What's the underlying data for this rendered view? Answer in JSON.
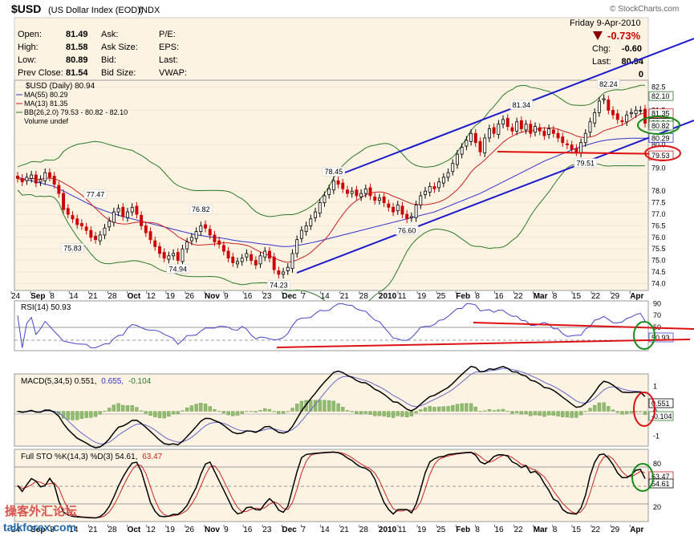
{
  "header": {
    "symbol": "$USD",
    "name": "(US Dollar Index (EOD))",
    "exchange": "INDX",
    "copyright": "© StockCharts.com",
    "date": "Friday  9-Apr-2010",
    "pct_change": "-0.73%"
  },
  "quote": {
    "open_label": "Open:",
    "open": "81.49",
    "high_label": "High:",
    "high": "81.58",
    "low_label": "Low:",
    "low": "80.89",
    "prev_label": "Prev Close:",
    "prev": "81.54",
    "ask_label": "Ask:",
    "asksize_label": "Ask Size:",
    "bid_label": "Bid:",
    "bidsize_label": "Bid Size:",
    "pe_label": "P/E:",
    "eps_label": "EPS:",
    "last_label": "Last:",
    "vwap_label": "VWAP:",
    "chg_label": "Chg:",
    "chg": "-0.60",
    "last2_label": "Last:",
    "last": "80.94",
    "vol": "0"
  },
  "legend": {
    "price": "$USD (Daily) 80.94",
    "ma55": "MA(55) 80.29",
    "ma13": "MA(13) 81.35",
    "bb": "BB(26,2.0) 79.53 - 80.82 - 82.10",
    "volume": "Volume undef"
  },
  "panels": {
    "rsi": "RSI(14) 50.93",
    "macd_main": "MACD(5,34,5) 0.551,",
    "macd_signal": "0.655,",
    "macd_hist": "-0.104",
    "sto_main": "Full STO %K(14,3) %D(3) 54.61,",
    "sto_d": "63.47"
  },
  "watermark": {
    "cn": "操客外汇论坛",
    "site": "talkforex.com"
  },
  "colors": {
    "panel_bg": "#fdf3e3",
    "up": "#000000",
    "down": "#cc0000",
    "ma55": "#3333cc",
    "ma13": "#cc2222",
    "bb": "#2a7a2a",
    "trend": "#1a1acc",
    "support": "#dd1111",
    "circle_green": "#1a8a1a",
    "circle_red": "#dd1111"
  },
  "chart_data": [
    {
      "type": "candlestick",
      "title": "$USD (US Dollar Index (EOD))",
      "x_ticks": [
        "24",
        "Sep",
        "8",
        "14",
        "21",
        "28",
        "Oct",
        "12",
        "19",
        "26",
        "Nov",
        "9",
        "16",
        "23",
        "Dec",
        "7",
        "14",
        "21",
        "28",
        "2010",
        "11",
        "19",
        "25",
        "Feb",
        "8",
        "16",
        "22",
        "Mar",
        "8",
        "15",
        "22",
        "29",
        "Apr"
      ],
      "y_ticks": [
        "82.5",
        "81.5",
        "80.0",
        "79.0",
        "78.0",
        "77.5",
        "77.0",
        "76.5",
        "76.0",
        "75.5",
        "75.0",
        "74.5",
        "74.0"
      ],
      "ylim": [
        73.7,
        82.8
      ],
      "annotations": [
        {
          "label": "77.47",
          "value": 77.47
        },
        {
          "label": "75.83",
          "value": 75.83
        },
        {
          "label": "76.82",
          "value": 76.82
        },
        {
          "label": "74.94",
          "value": 74.94
        },
        {
          "label": "74.23",
          "value": 74.23
        },
        {
          "label": "78.45",
          "value": 78.45
        },
        {
          "label": "76.60",
          "value": 76.6
        },
        {
          "label": "81.34",
          "value": 81.34
        },
        {
          "label": "79.51",
          "value": 79.51
        },
        {
          "label": "82.24",
          "value": 82.24
        }
      ],
      "price_labels": [
        {
          "label": "82.10",
          "value": 82.1
        },
        {
          "label": "81.35",
          "value": 81.35
        },
        {
          "label": "80.94",
          "value": 80.94
        },
        {
          "label": "80.82",
          "value": 80.82
        },
        {
          "label": "80.29",
          "value": 80.29
        },
        {
          "label": "79.53",
          "value": 79.53
        }
      ],
      "close": [
        78.55,
        78.4,
        78.6,
        78.7,
        78.35,
        78.5,
        78.8,
        78.6,
        78.3,
        77.9,
        77.2,
        77.0,
        76.8,
        76.55,
        76.5,
        76.3,
        76.0,
        75.9,
        76.1,
        76.4,
        76.7,
        77.1,
        77.25,
        76.9,
        77.1,
        77.3,
        77.0,
        76.5,
        76.2,
        75.9,
        75.6,
        75.3,
        75.1,
        75.2,
        75.3,
        75.0,
        75.5,
        75.8,
        76.0,
        76.25,
        76.5,
        76.4,
        76.1,
        75.8,
        75.7,
        75.4,
        75.1,
        74.9,
        74.95,
        75.1,
        75.3,
        75.0,
        74.8,
        75.2,
        75.4,
        75.1,
        74.6,
        74.4,
        74.5,
        74.7,
        75.3,
        75.9,
        76.3,
        76.5,
        76.8,
        77.1,
        77.5,
        77.8,
        78.1,
        78.45,
        78.3,
        78.1,
        77.9,
        78.0,
        77.8,
        77.9,
        78.1,
        77.8,
        77.6,
        77.7,
        77.5,
        77.3,
        77.1,
        77.4,
        77.0,
        76.8,
        76.9,
        77.4,
        77.8,
        78.0,
        78.2,
        78.1,
        78.4,
        78.6,
        78.8,
        79.2,
        79.6,
        79.9,
        80.2,
        80.5,
        80.1,
        79.7,
        80.3,
        80.7,
        80.5,
        80.9,
        81.1,
        80.8,
        80.6,
        81.0,
        80.7,
        80.9,
        80.5,
        80.8,
        80.6,
        80.4,
        80.7,
        80.5,
        80.3,
        80.1,
        80.0,
        79.8,
        79.7,
        80.1,
        80.5,
        81.0,
        81.4,
        81.9,
        82.0,
        81.5,
        81.3,
        81.1,
        81.0,
        81.3,
        81.4,
        81.5,
        81.5,
        80.94
      ],
      "ma55": [
        78.6,
        78.55,
        78.5,
        78.45,
        78.4,
        78.35,
        78.3,
        78.25,
        78.2,
        78.1,
        78.0,
        77.9,
        77.8,
        77.7,
        77.6,
        77.5,
        77.4,
        77.3,
        77.22,
        77.15,
        77.08,
        77.02,
        76.96,
        76.9,
        76.85,
        76.8,
        76.75,
        76.7,
        76.65,
        76.6,
        76.55,
        76.5,
        76.45,
        76.4,
        76.35,
        76.3,
        76.25,
        76.2,
        76.15,
        76.1,
        76.08,
        76.05,
        76.02,
        76.0,
        75.98,
        75.95,
        75.92,
        75.88,
        75.85,
        75.82,
        75.8,
        75.78,
        75.75,
        75.72,
        75.7,
        75.68,
        75.65,
        75.62,
        75.6,
        75.6,
        75.62,
        75.65,
        75.68,
        75.72,
        75.76,
        75.8,
        75.85,
        75.9,
        75.95,
        76.0,
        76.05,
        76.1,
        76.15,
        76.2,
        76.25,
        76.3,
        76.35,
        76.4,
        76.45,
        76.5,
        76.55,
        76.6,
        76.65,
        76.7,
        76.75,
        76.8,
        76.85,
        76.9,
        76.95,
        77.0,
        77.05,
        77.1,
        77.18,
        77.26,
        77.34,
        77.42,
        77.5,
        77.58,
        77.66,
        77.74,
        77.82,
        77.9,
        78.0,
        78.1,
        78.2,
        78.3,
        78.4,
        78.5,
        78.6,
        78.7,
        78.8,
        78.9,
        79.0,
        79.1,
        79.2,
        79.3,
        79.38,
        79.46,
        79.54,
        79.62,
        79.7,
        79.78,
        79.86,
        79.92,
        79.98,
        80.04,
        80.1,
        80.15,
        80.19,
        80.22,
        80.24,
        80.26,
        80.27,
        80.28,
        80.29,
        80.29,
        80.29,
        80.29,
        80.29,
        80.29
      ]
    },
    {
      "type": "line",
      "title": "RSI(14) 50.93",
      "y_ticks": [
        "90",
        "70",
        "50",
        "30"
      ],
      "ylim": [
        10,
        95
      ],
      "annotations": [
        {
          "label": "50.93",
          "value": 50.93
        }
      ]
    },
    {
      "type": "line",
      "title": "MACD(5,34,5)",
      "series": [
        {
          "name": "0.551",
          "last": 0.551
        },
        {
          "name": "0.655",
          "last": 0.655
        },
        {
          "name": "-0.104",
          "last": -0.104
        }
      ],
      "y_ticks": [
        "1",
        "0",
        "-1"
      ],
      "ylim": [
        -1.4,
        1.5
      ]
    },
    {
      "type": "line",
      "title": "Full STO %K(14,3) %D(3)",
      "series": [
        {
          "name": "54.61",
          "last": 54.61
        },
        {
          "name": "63.47",
          "last": 63.47
        }
      ],
      "y_ticks": [
        "80",
        "20"
      ],
      "ylim": [
        0,
        100
      ]
    }
  ]
}
